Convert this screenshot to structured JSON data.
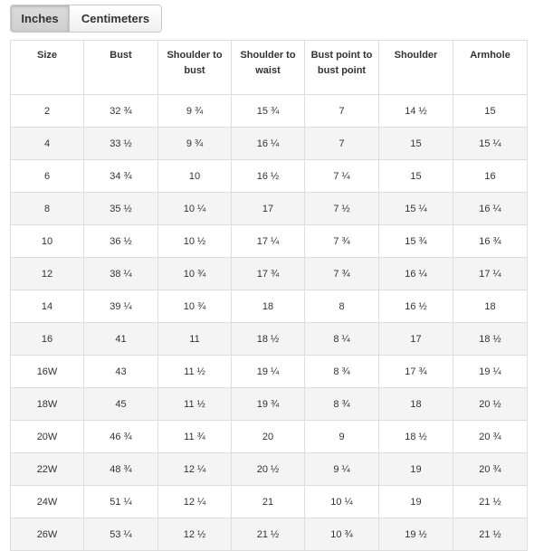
{
  "tabs": {
    "inches_label": "Inches",
    "centimeters_label": "Centimeters",
    "active": "Inches"
  },
  "table": {
    "columns": [
      "Size",
      "Bust",
      "Shoulder to bust",
      "Shoulder to waist",
      "Bust point to bust point",
      "Shoulder",
      "Armhole"
    ],
    "rows": [
      [
        "2",
        "32 ¾",
        "9 ¾",
        "15 ¾",
        "7",
        "14 ½",
        "15"
      ],
      [
        "4",
        "33 ½",
        "9 ¾",
        "16 ¼",
        "7",
        "15",
        "15 ¼"
      ],
      [
        "6",
        "34 ¾",
        "10",
        "16 ½",
        "7 ¼",
        "15",
        "16"
      ],
      [
        "8",
        "35 ½",
        "10 ¼",
        "17",
        "7 ½",
        "15 ¼",
        "16 ¼"
      ],
      [
        "10",
        "36 ½",
        "10 ½",
        "17 ¼",
        "7 ¾",
        "15 ¾",
        "16 ¾"
      ],
      [
        "12",
        "38 ¼",
        "10 ¾",
        "17 ¾",
        "7 ¾",
        "16 ¼",
        "17 ¼"
      ],
      [
        "14",
        "39 ¼",
        "10 ¾",
        "18",
        "8",
        "16 ½",
        "18"
      ],
      [
        "16",
        "41",
        "11",
        "18 ½",
        "8 ¼",
        "17",
        "18 ½"
      ],
      [
        "16W",
        "43",
        "11 ½",
        "19 ¼",
        "8 ¾",
        "17 ¾",
        "19 ¼"
      ],
      [
        "18W",
        "45",
        "11 ½",
        "19 ¾",
        "8 ¾",
        "18",
        "20 ½"
      ],
      [
        "20W",
        "46 ¾",
        "11 ¾",
        "20",
        "9",
        "18 ½",
        "20 ¾"
      ],
      [
        "22W",
        "48 ¾",
        "12 ¼",
        "20 ½",
        "9 ¼",
        "19",
        "20 ¾"
      ],
      [
        "24W",
        "51 ¼",
        "12 ¼",
        "21",
        "10 ¼",
        "19",
        "21 ½"
      ],
      [
        "26W",
        "53 ¼",
        "12 ½",
        "21 ½",
        "10 ¾",
        "19 ½",
        "21 ½"
      ]
    ]
  }
}
